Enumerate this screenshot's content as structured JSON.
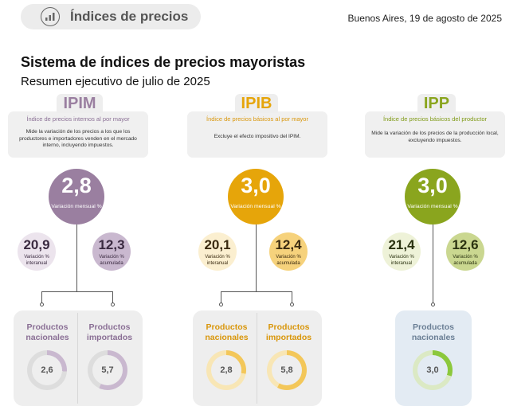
{
  "header": {
    "title": "Índices de precios",
    "place_date": "Buenos Aires, 19 de agosto de 2025",
    "icon": "price-chart-icon"
  },
  "title": "Sistema de índices de precios mayoristas",
  "subtitle": "Resumen ejecutivo de julio de 2025",
  "colors": {
    "ipim": "#9a7fa0",
    "ipib": "#e6a50a",
    "ipp": "#8aa51e"
  },
  "indices": [
    {
      "acronym": "IPIM",
      "full_name": "Índice de precios internos al por mayor",
      "description": "Mide la variación de los precios a los que los productores e importadores venden en el mercado interno, incluyendo impuestos.",
      "monthly": {
        "value": "2,8",
        "label": "Variación mensual %"
      },
      "yearly": {
        "value": "20,9",
        "label": "Variación % interanual"
      },
      "accum": {
        "value": "12,3",
        "label": "Variación % acumulada"
      },
      "products": [
        {
          "label": "Productos nacionales",
          "value": "2,6"
        },
        {
          "label": "Productos importados",
          "value": "5,7"
        }
      ]
    },
    {
      "acronym": "IPIB",
      "full_name": "Índice de precios básicos al por mayor",
      "description": "Excluye el efecto impositivo del IPIM.",
      "monthly": {
        "value": "3,0",
        "label": "Variación mensual %"
      },
      "yearly": {
        "value": "20,1",
        "label": "Variación % interanual"
      },
      "accum": {
        "value": "12,4",
        "label": "Variación % acumulada"
      },
      "products": [
        {
          "label": "Productos nacionales",
          "value": "2,8"
        },
        {
          "label": "Productos importados",
          "value": "5,8"
        }
      ]
    },
    {
      "acronym": "IPP",
      "full_name": "Índice de precios básicos del productor",
      "description": "Mide la variación de los precios de la producción local, excluyendo impuestos.",
      "monthly": {
        "value": "3,0",
        "label": "Variación mensual %"
      },
      "yearly": {
        "value": "21,4",
        "label": "Variación % interanual"
      },
      "accum": {
        "value": "12,6",
        "label": "Variación % acumulada"
      },
      "products": [
        {
          "label": "Productos nacionales",
          "value": "3,0"
        }
      ]
    }
  ]
}
